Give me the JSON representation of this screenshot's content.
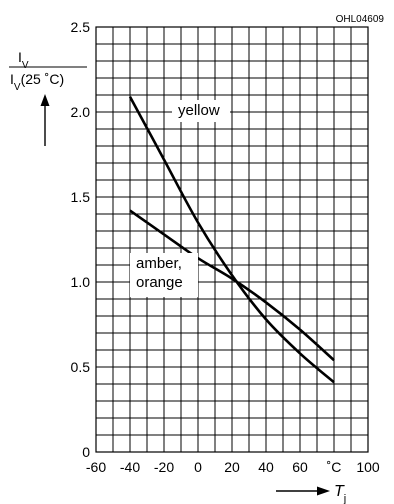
{
  "chart_data": {
    "type": "line",
    "figure_code": "OHL04609",
    "ylabel": {
      "numerator": "I",
      "numerator_sub": "V",
      "denominator": "I",
      "denominator_sub": "V",
      "denominator_suffix": "(25 ˚C)"
    },
    "xlabel": {
      "symbol": "T",
      "sub": "j"
    },
    "xlim": [
      -60,
      100
    ],
    "ylim": [
      0,
      2.5
    ],
    "x_ticks": [
      {
        "value": -60,
        "label": "-60"
      },
      {
        "value": -40,
        "label": "-40"
      },
      {
        "value": -20,
        "label": "-20"
      },
      {
        "value": 0,
        "label": "0"
      },
      {
        "value": 20,
        "label": "20"
      },
      {
        "value": 40,
        "label": "40"
      },
      {
        "value": 60,
        "label": "60"
      },
      {
        "value": 80,
        "label": "˚C"
      },
      {
        "value": 100,
        "label": "100"
      }
    ],
    "y_ticks": [
      {
        "value": 0,
        "label": "0"
      },
      {
        "value": 0.5,
        "label": "0.5"
      },
      {
        "value": 1.0,
        "label": "1.0"
      },
      {
        "value": 1.5,
        "label": "1.5"
      },
      {
        "value": 2.0,
        "label": "2.0"
      },
      {
        "value": 2.5,
        "label": "2.5"
      }
    ],
    "grid": true,
    "series": [
      {
        "name": "yellow",
        "x": [
          -40,
          -20,
          0,
          20,
          40,
          60,
          80
        ],
        "y": [
          2.09,
          1.72,
          1.35,
          1.04,
          0.78,
          0.58,
          0.41
        ]
      },
      {
        "name": "amber, orange",
        "x": [
          -40,
          -20,
          0,
          20,
          40,
          60,
          80
        ],
        "y": [
          1.42,
          1.28,
          1.14,
          1.02,
          0.88,
          0.72,
          0.54
        ]
      }
    ],
    "series_label_lines": {
      "yellow": [
        "yellow"
      ],
      "amber, orange": [
        "amber,",
        "orange"
      ]
    }
  }
}
